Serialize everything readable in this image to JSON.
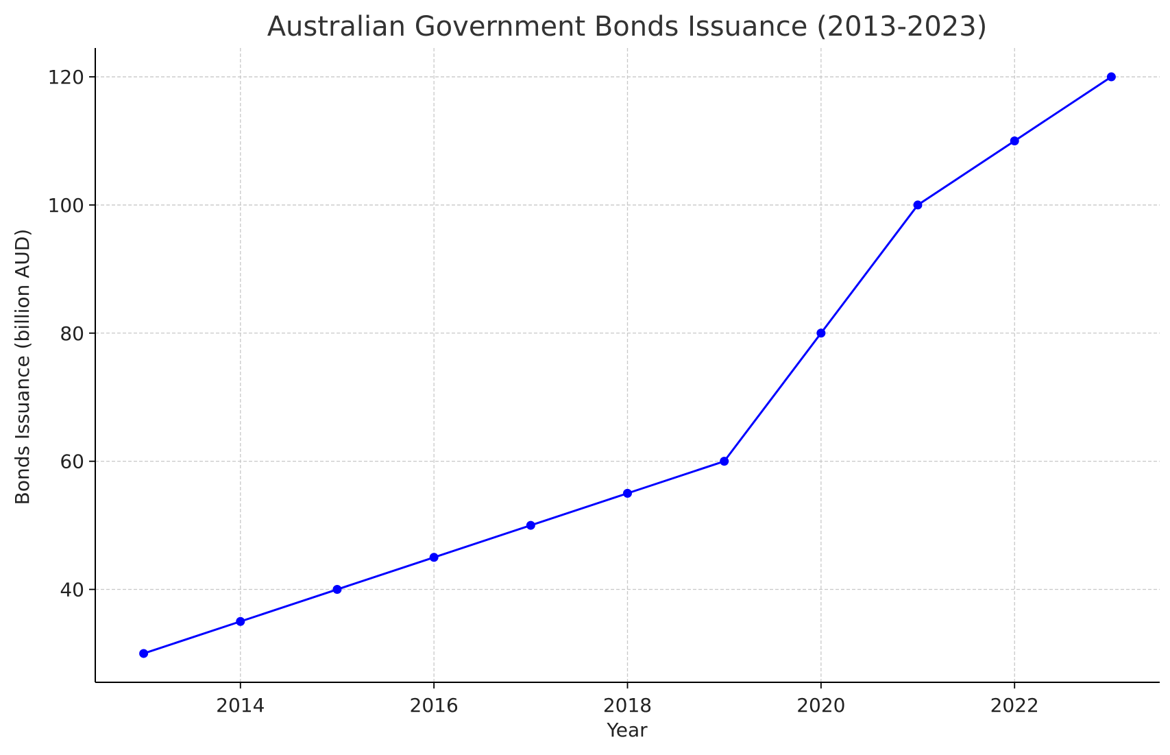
{
  "chart_data": {
    "type": "line",
    "title": "Australian Government Bonds Issuance (2013-2023)",
    "xlabel": "Year",
    "ylabel": "Bonds Issuance (billion AUD)",
    "x": [
      2013,
      2014,
      2015,
      2016,
      2017,
      2018,
      2019,
      2020,
      2021,
      2022,
      2023
    ],
    "series": [
      {
        "values": [
          30,
          35,
          40,
          45,
          50,
          55,
          60,
          80,
          100,
          110,
          120
        ],
        "color": "#0000ff",
        "marker": "circle"
      }
    ],
    "xlim": [
      2012.5,
      2023.5
    ],
    "ylim": [
      25.5,
      124.5
    ],
    "xticks": [
      "2014",
      "2016",
      "2018",
      "2020",
      "2022"
    ],
    "yticks": [
      "40",
      "60",
      "80",
      "100",
      "120"
    ],
    "grid": true,
    "legend": "none"
  }
}
